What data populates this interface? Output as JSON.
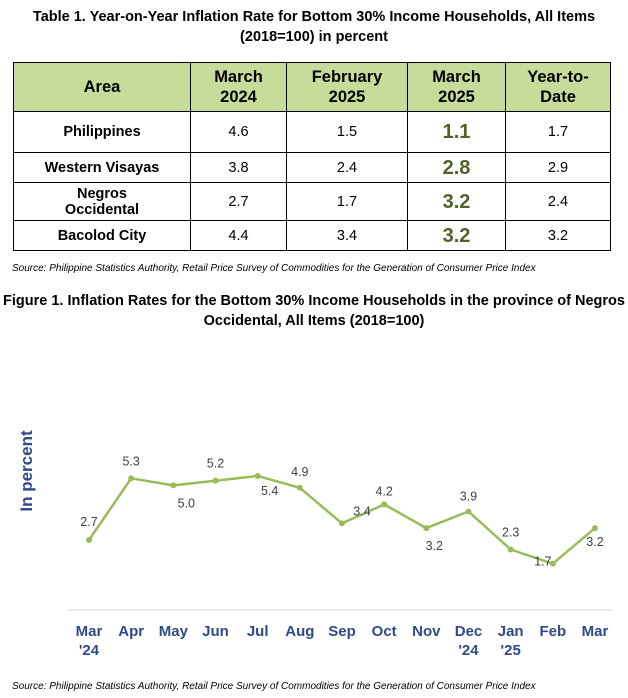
{
  "table": {
    "title": "Table 1. Year-on-Year Inflation Rate for Bottom 30% Income Households, All Items (2018=100) in percent",
    "headers": [
      "Area",
      "March 2024",
      "February 2025",
      "March 2025",
      "Year-to-Date"
    ],
    "rows": [
      {
        "area": "Philippines",
        "mar2024": "4.6",
        "feb2025": "1.5",
        "mar2025": "1.1",
        "ytd": "1.7"
      },
      {
        "area": "Western Visayas",
        "mar2024": "3.8",
        "feb2025": "2.4",
        "mar2025": "2.8",
        "ytd": "2.9"
      },
      {
        "area": "Negros Occidental",
        "mar2024": "2.7",
        "feb2025": "1.7",
        "mar2025": "3.2",
        "ytd": "2.4"
      },
      {
        "area": "Bacolod City",
        "mar2024": "4.4",
        "feb2025": "3.4",
        "mar2025": "3.2",
        "ytd": "3.2"
      }
    ],
    "header_color": "#c5dc9b",
    "highlight_color": "#4f6228"
  },
  "source1": "Source: Philippine Statistics Authority, Retail Price Survey of Commodities for the Generation of Consumer Price Index",
  "figure": {
    "title": "Figure 1. Inflation Rates for the Bottom 30% Income Households in the province of Negros Occidental, All Items (2018=100)"
  },
  "chart_data": {
    "type": "line",
    "ylabel": "In percent",
    "xlabel": "",
    "categories": [
      "Mar\n'24",
      "Apr",
      "May",
      "Jun",
      "Jul",
      "Aug",
      "Sep",
      "Oct",
      "Nov",
      "Dec\n'24",
      "Jan\n'25",
      "Feb",
      "Mar"
    ],
    "series": [
      {
        "values": [
          2.7,
          5.3,
          5.0,
          5.2,
          5.4,
          4.9,
          3.4,
          4.2,
          3.2,
          3.9,
          2.3,
          1.7,
          3.2
        ]
      }
    ],
    "data_labels": [
      "2.7",
      "5.3",
      "5.0",
      "5.2",
      "5.4",
      "4.9",
      "3.4",
      "4.2",
      "3.2",
      "3.9",
      "2.3",
      "1.7",
      "3.2"
    ],
    "ylim": [
      0,
      7
    ],
    "grid": false,
    "legend": "none",
    "line_color": "#9bbb59",
    "axis_text_color": "#2e4a8a"
  },
  "source2": "Source: Philippine Statistics Authority, Retail Price Survey of Commodities for the Generation of Consumer Price Index"
}
